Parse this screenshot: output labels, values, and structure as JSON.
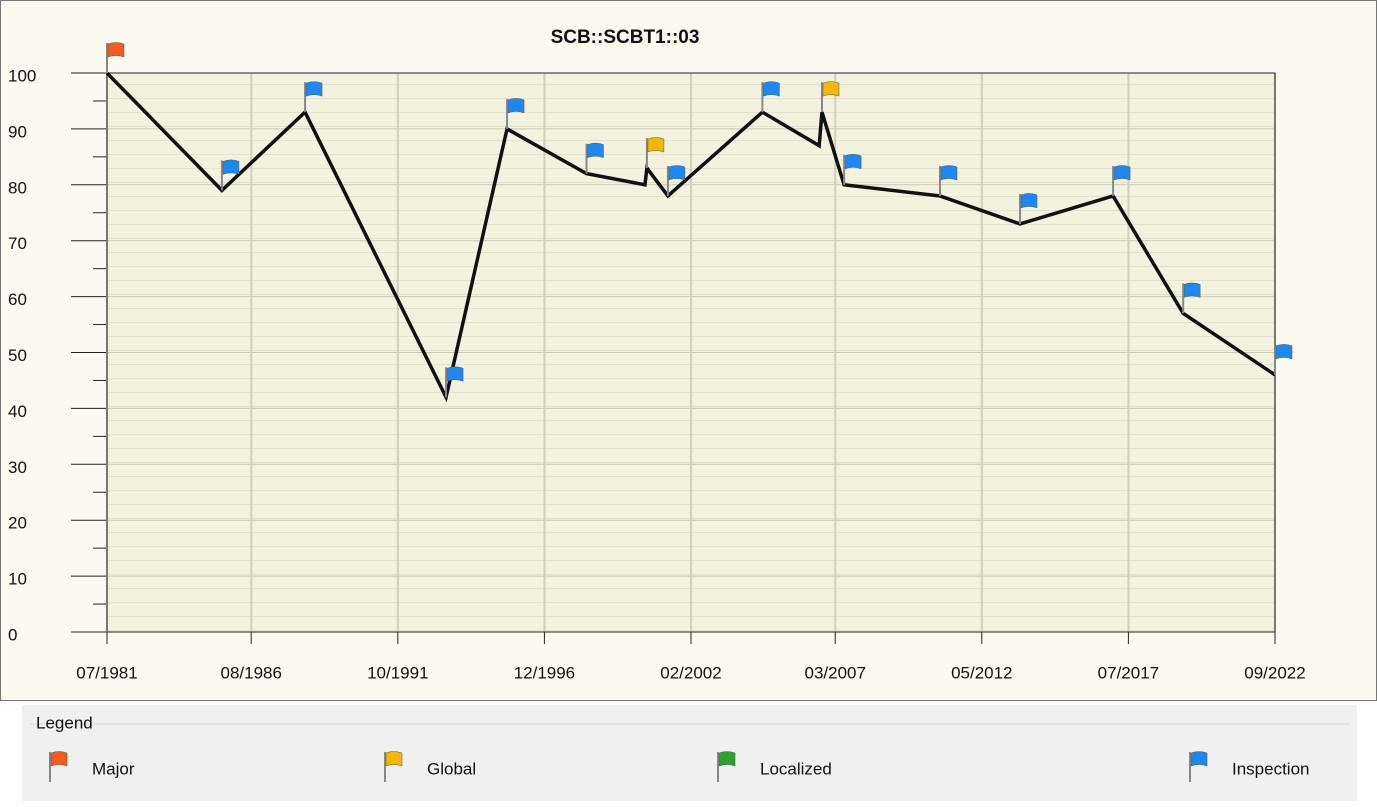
{
  "chart_data": {
    "type": "line",
    "title": "SCB::SCBT1::03",
    "x": [
      1981.5,
      1985.55,
      1988.48,
      1993.45,
      1995.6,
      1998.4,
      2000.46,
      2000.53,
      2001.27,
      2004.6,
      2006.6,
      2006.7,
      2007.48,
      2010.86,
      2013.68,
      2016.96,
      2019.43,
      2022.667
    ],
    "series": [
      {
        "color": "#111111",
        "values": [
          100,
          79,
          93,
          42,
          90,
          82,
          80,
          83,
          78,
          93,
          87,
          93,
          80,
          78,
          73,
          78,
          57,
          46
        ]
      }
    ],
    "flags": [
      "Major",
      "Inspection",
      "Inspection",
      "Inspection",
      "Inspection",
      "Inspection",
      null,
      "Global",
      "Inspection",
      "Inspection",
      null,
      "Global",
      "Inspection",
      "Inspection",
      "Inspection",
      "Inspection",
      "Inspection",
      "Inspection"
    ],
    "xlim": [
      1981.5,
      2022.667
    ],
    "xticks": [
      {
        "value": 1981.5,
        "label": "07/1981"
      },
      {
        "value": 1986.583,
        "label": "08/1986"
      },
      {
        "value": 1991.75,
        "label": "10/1991"
      },
      {
        "value": 1996.917,
        "label": "12/1996"
      },
      {
        "value": 2002.083,
        "label": "02/2002"
      },
      {
        "value": 2007.167,
        "label": "03/2007"
      },
      {
        "value": 2012.333,
        "label": "05/2012"
      },
      {
        "value": 2017.5,
        "label": "07/2017"
      },
      {
        "value": 2022.667,
        "label": "09/2022"
      }
    ],
    "ylim": [
      0,
      100
    ],
    "yticks": [
      0,
      10,
      20,
      30,
      40,
      50,
      60,
      70,
      80,
      90,
      100
    ],
    "grid": true,
    "legend": {
      "title": "Legend",
      "items": [
        {
          "name": "Major",
          "color": "#f25c1c"
        },
        {
          "name": "Global",
          "color": "#f5b800"
        },
        {
          "name": "Localized",
          "color": "#2aa52a"
        },
        {
          "name": "Inspection",
          "color": "#1e88f0"
        }
      ]
    }
  }
}
